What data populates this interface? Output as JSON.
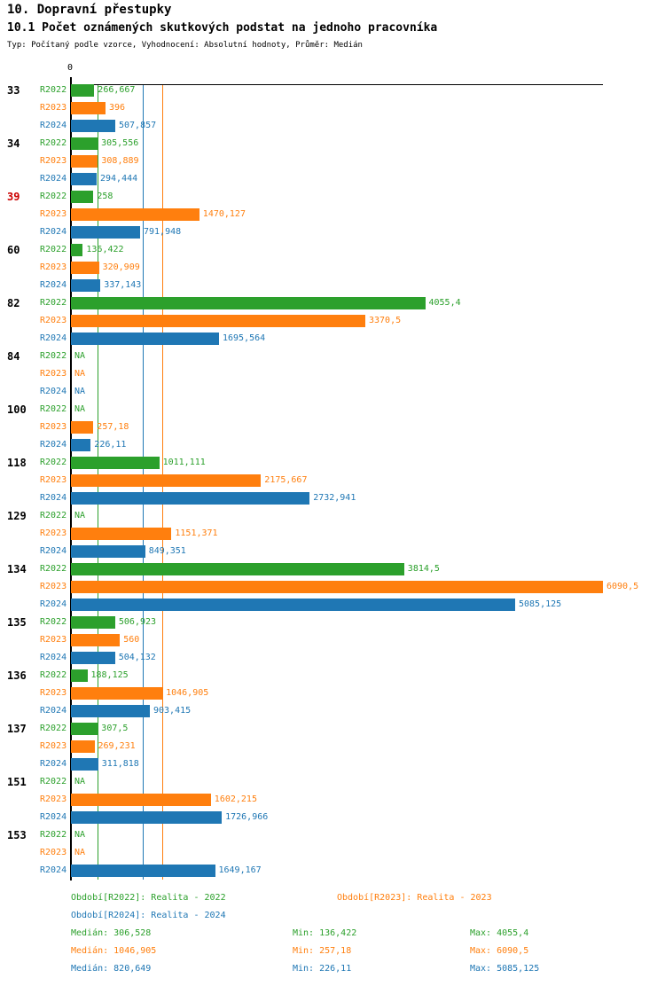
{
  "title": "10. Dopravní přestupky",
  "subtitle": "10.1 Počet oznámených skutkových podstat na jednoho pracovníka",
  "meta": "Typ: Počítaný podle vzorce, Vyhodnocení: Absolutní hodnoty, Průměr: Medián",
  "chart_data": {
    "type": "bar",
    "orientation": "horizontal",
    "x_axis": {
      "zero_label": "0",
      "min": 0,
      "max": 6090.5,
      "gridlines": false
    },
    "highlight_color": "#cc0000",
    "highlighted_categories": [
      "39"
    ],
    "categories": [
      "33",
      "34",
      "39",
      "60",
      "82",
      "84",
      "100",
      "118",
      "129",
      "134",
      "135",
      "136",
      "137",
      "151",
      "153"
    ],
    "series": [
      {
        "name": "R2022",
        "color": "#2ca02c",
        "legend": "Období[R2022]: Realita - 2022",
        "median": 306.528,
        "median_label": "Medián: 306,528",
        "min_label": "Min: 136,422",
        "max_label": "Max: 4055,4",
        "values": [
          266.667,
          305.556,
          258,
          136.422,
          4055.4,
          null,
          null,
          1011.111,
          null,
          3814.5,
          506.923,
          188.125,
          307.5,
          null,
          null
        ],
        "labels": [
          "266,667",
          "305,556",
          "258",
          "136,422",
          "4055,4",
          "NA",
          "NA",
          "1011,111",
          "NA",
          "3814,5",
          "506,923",
          "188,125",
          "307,5",
          "NA",
          "NA"
        ]
      },
      {
        "name": "R2023",
        "color": "#ff7f0e",
        "legend": "Období[R2023]: Realita - 2023",
        "median": 1046.905,
        "median_label": "Medián: 1046,905",
        "min_label": "Min: 257,18",
        "max_label": "Max: 6090,5",
        "values": [
          396,
          308.889,
          1470.127,
          320.909,
          3370.5,
          null,
          257.18,
          2175.667,
          1151.371,
          6090.5,
          560,
          1046.905,
          269.231,
          1602.215,
          null
        ],
        "labels": [
          "396",
          "308,889",
          "1470,127",
          "320,909",
          "3370,5",
          "NA",
          "257,18",
          "2175,667",
          "1151,371",
          "6090,5",
          "560",
          "1046,905",
          "269,231",
          "1602,215",
          "NA"
        ]
      },
      {
        "name": "R2024",
        "color": "#1f77b4",
        "legend": "Období[R2024]: Realita - 2024",
        "median": 820.649,
        "median_label": "Medián: 820,649",
        "min_label": "Min: 226,11",
        "max_label": "Max: 5085,125",
        "values": [
          507.857,
          294.444,
          791.948,
          337.143,
          1695.564,
          null,
          226.11,
          2732.941,
          849.351,
          5085.125,
          504.132,
          903.415,
          311.818,
          1726.966,
          1649.167
        ],
        "labels": [
          "507,857",
          "294,444",
          "791,948",
          "337,143",
          "1695,564",
          "NA",
          "226,11",
          "2732,941",
          "849,351",
          "5085,125",
          "504,132",
          "903,415",
          "311,818",
          "1726,966",
          "1649,167"
        ]
      }
    ]
  }
}
